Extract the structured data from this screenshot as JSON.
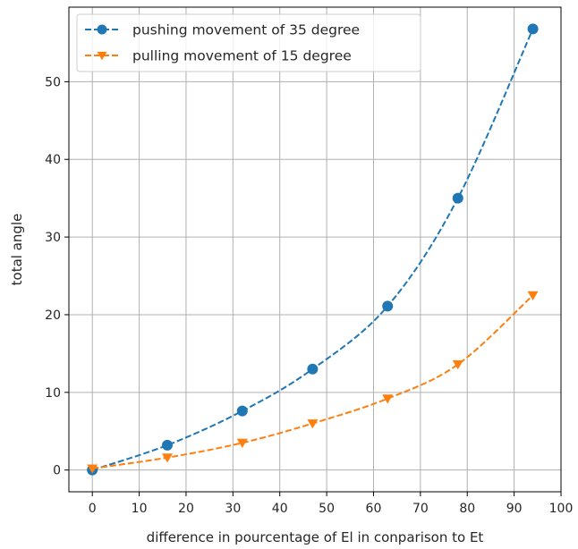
{
  "chart_data": {
    "type": "line",
    "title": "",
    "xlabel": "difference in pourcentage of El in conparison to Et",
    "ylabel": "total angle",
    "xlim": [
      -5,
      100
    ],
    "ylim": [
      -2.8,
      59.6
    ],
    "xticks": [
      0,
      10,
      20,
      30,
      40,
      50,
      60,
      70,
      80,
      90,
      100
    ],
    "yticks": [
      0,
      10,
      20,
      30,
      40,
      50
    ],
    "grid": true,
    "legend_position": "top-left",
    "series": [
      {
        "name": "pushing movement of 35 degree",
        "color": "#1f77b4",
        "marker": "circle",
        "line_style": "dashed",
        "x": [
          0,
          16,
          32,
          47,
          63,
          78,
          94
        ],
        "y": [
          0.0,
          3.2,
          7.6,
          13.0,
          21.1,
          35.0,
          56.8
        ]
      },
      {
        "name": "pulling movement of 15 degree",
        "color": "#ff7f0e",
        "marker": "triangle-down",
        "line_style": "dashed",
        "x": [
          0,
          16,
          32,
          47,
          63,
          78,
          94
        ],
        "y": [
          0.2,
          1.6,
          3.5,
          6.0,
          9.2,
          13.6,
          22.5
        ]
      }
    ]
  }
}
